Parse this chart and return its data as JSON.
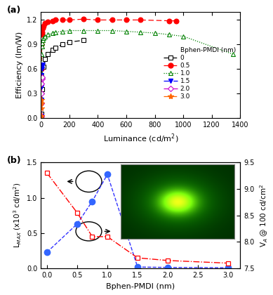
{
  "panel_a": {
    "series": [
      {
        "label": "0",
        "color": "black",
        "marker": "s",
        "markerfacecolor": "white",
        "markeredgecolor": "black",
        "x": [
          1,
          5,
          10,
          20,
          30,
          50,
          80,
          100,
          150,
          200,
          300
        ],
        "y": [
          0.0,
          0.05,
          0.35,
          0.63,
          0.72,
          0.78,
          0.83,
          0.86,
          0.9,
          0.93,
          0.95
        ]
      },
      {
        "label": "0.5",
        "color": "red",
        "marker": "o",
        "markerfacecolor": "red",
        "markeredgecolor": "red",
        "x": [
          1,
          3,
          5,
          8,
          10,
          15,
          20,
          30,
          50,
          80,
          100,
          150,
          200,
          300,
          400,
          500,
          600,
          700,
          900,
          950
        ],
        "y": [
          0.02,
          0.6,
          0.9,
          1.02,
          1.05,
          1.1,
          1.13,
          1.16,
          1.18,
          1.19,
          1.2,
          1.2,
          1.2,
          1.21,
          1.2,
          1.2,
          1.2,
          1.2,
          1.19,
          1.19
        ]
      },
      {
        "label": "1.0",
        "color": "green",
        "marker": "^",
        "markerfacecolor": "white",
        "markeredgecolor": "green",
        "x": [
          1,
          3,
          5,
          8,
          10,
          15,
          20,
          30,
          50,
          80,
          100,
          150,
          200,
          300,
          400,
          500,
          600,
          700,
          800,
          900,
          1000,
          1350
        ],
        "y": [
          0.02,
          0.55,
          0.78,
          0.88,
          0.92,
          0.95,
          0.98,
          1.0,
          1.02,
          1.04,
          1.05,
          1.06,
          1.07,
          1.07,
          1.07,
          1.07,
          1.06,
          1.05,
          1.04,
          1.02,
          1.0,
          0.78
        ]
      },
      {
        "label": "1.5",
        "color": "blue",
        "marker": "v",
        "markerfacecolor": "blue",
        "markeredgecolor": "blue",
        "x": [
          1,
          2,
          3,
          5,
          8,
          10,
          15
        ],
        "y": [
          0.02,
          0.22,
          0.38,
          0.52,
          0.6,
          0.63,
          0.65
        ]
      },
      {
        "label": "2.0",
        "color": "#CC00CC",
        "marker": "D",
        "markerfacecolor": "white",
        "markeredgecolor": "#CC00CC",
        "x": [
          1,
          2,
          3,
          5,
          8,
          10
        ],
        "y": [
          0.02,
          0.18,
          0.3,
          0.42,
          0.48,
          0.5
        ]
      },
      {
        "label": "3.0",
        "color": "#FF6600",
        "marker": "*",
        "markerfacecolor": "#FF6600",
        "markeredgecolor": "#FF6600",
        "x": [
          1,
          2,
          3,
          5
        ],
        "y": [
          0.02,
          0.12,
          0.18,
          0.22
        ]
      }
    ],
    "xlabel": "Luminance (cd/m$^2$)",
    "ylabel": "Efficiency (lm/W)",
    "xlim": [
      0,
      1400
    ],
    "ylim": [
      0,
      1.3
    ],
    "yticks": [
      0.0,
      0.3,
      0.6,
      0.9,
      1.2
    ],
    "xticks": [
      0,
      200,
      400,
      600,
      800,
      1000,
      1200,
      1400
    ]
  },
  "panel_b": {
    "blue_x": [
      0.0,
      0.5,
      0.75,
      1.0,
      1.5,
      2.0,
      3.0
    ],
    "blue_y": [
      0.23,
      0.63,
      0.95,
      1.33,
      0.02,
      0.015,
      0.01
    ],
    "red_x": [
      0.0,
      0.5,
      0.75,
      1.0,
      1.5,
      2.0,
      3.0
    ],
    "red_y": [
      9.3,
      8.55,
      8.1,
      8.1,
      7.7,
      7.65,
      7.6
    ],
    "xlabel": "Bphen-PMDI (nm)",
    "ylabel_left": "L$_{MAX}$ (x10$^3$ cd/m$^2$)",
    "ylabel_right": "V$_A$ @ 100 cd/cm$^2$",
    "xlim": [
      -0.1,
      3.2
    ],
    "ylim_left": [
      0,
      1.5
    ],
    "ylim_right": [
      7.5,
      9.5
    ],
    "yticks_left": [
      0.0,
      0.5,
      1.0,
      1.5
    ],
    "yticks_right": [
      7.5,
      8.0,
      8.5,
      9.0,
      9.5
    ],
    "xticks": [
      0.0,
      0.5,
      1.0,
      1.5,
      2.0,
      2.5,
      3.0
    ]
  }
}
